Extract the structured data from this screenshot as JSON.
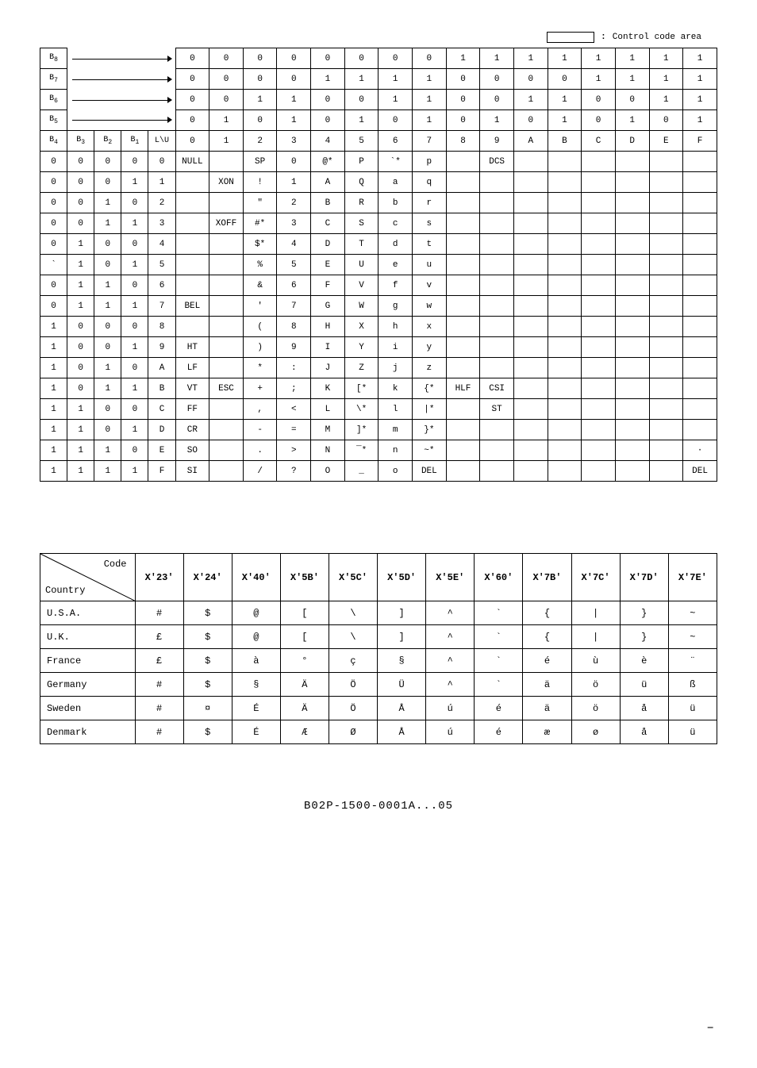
{
  "legend": {
    "label": "Control code area"
  },
  "bitHeaders": {
    "rowLabels": [
      "B₈",
      "B₇",
      "B₆",
      "B₅"
    ],
    "col5Label": "B₄",
    "subLabels": [
      "B₃",
      "B₂",
      "B₁",
      "L\\U"
    ]
  },
  "topRows": [
    [
      "0",
      "0",
      "0",
      "0",
      "0",
      "0",
      "0",
      "0",
      "1",
      "1",
      "1",
      "1",
      "1",
      "1",
      "1",
      "1"
    ],
    [
      "0",
      "0",
      "0",
      "0",
      "1",
      "1",
      "1",
      "1",
      "0",
      "0",
      "0",
      "0",
      "1",
      "1",
      "1",
      "1"
    ],
    [
      "0",
      "0",
      "1",
      "1",
      "0",
      "0",
      "1",
      "1",
      "0",
      "0",
      "1",
      "1",
      "0",
      "0",
      "1",
      "1"
    ],
    [
      "0",
      "1",
      "0",
      "1",
      "0",
      "1",
      "0",
      "1",
      "0",
      "1",
      "0",
      "1",
      "0",
      "1",
      "0",
      "1"
    ]
  ],
  "hexRow": [
    "0",
    "1",
    "2",
    "3",
    "4",
    "5",
    "6",
    "7",
    "8",
    "9",
    "A",
    "B",
    "C",
    "D",
    "E",
    "F"
  ],
  "dataRows": [
    {
      "bits": [
        "0",
        "0",
        "0",
        "0",
        "0"
      ],
      "cells": [
        "NULL",
        "",
        "SP",
        "0",
        "@*",
        "P",
        "`*",
        "p",
        "",
        "DCS",
        "",
        "",
        "",
        "",
        "",
        ""
      ]
    },
    {
      "bits": [
        "0",
        "0",
        "0",
        "1",
        "1"
      ],
      "cells": [
        "",
        "XON",
        "!",
        "1",
        "A",
        "Q",
        "a",
        "q",
        "",
        "",
        "",
        "",
        "",
        "",
        "",
        ""
      ]
    },
    {
      "bits": [
        "0",
        "0",
        "1",
        "0",
        "2"
      ],
      "cells": [
        "",
        "",
        "\"",
        "2",
        "B",
        "R",
        "b",
        "r",
        "",
        "",
        "",
        "",
        "",
        "",
        "",
        ""
      ]
    },
    {
      "bits": [
        "0",
        "0",
        "1",
        "1",
        "3"
      ],
      "cells": [
        "",
        "XOFF",
        "#*",
        "3",
        "C",
        "S",
        "c",
        "s",
        "",
        "",
        "",
        "",
        "",
        "",
        "",
        ""
      ]
    },
    {
      "bits": [
        "0",
        "1",
        "0",
        "0",
        "4"
      ],
      "cells": [
        "",
        "",
        "$*",
        "4",
        "D",
        "T",
        "d",
        "t",
        "",
        "",
        "",
        "",
        "",
        "",
        "",
        ""
      ]
    },
    {
      "bits": [
        "`",
        "1",
        "0",
        "1",
        "5"
      ],
      "cells": [
        "",
        "",
        "%",
        "5",
        "E",
        "U",
        "e",
        "u",
        "",
        "",
        "",
        "",
        "",
        "",
        "",
        ""
      ]
    },
    {
      "bits": [
        "0",
        "1",
        "1",
        "0",
        "6"
      ],
      "cells": [
        "",
        "",
        "&",
        "6",
        "F",
        "V",
        "f",
        "v",
        "",
        "",
        "",
        "",
        "",
        "",
        "",
        ""
      ]
    },
    {
      "bits": [
        "0",
        "1",
        "1",
        "1",
        "7"
      ],
      "cells": [
        "BEL",
        "",
        "'",
        "7",
        "G",
        "W",
        "g",
        "w",
        "",
        "",
        "",
        "",
        "",
        "",
        "",
        ""
      ]
    },
    {
      "bits": [
        "1",
        "0",
        "0",
        "0",
        "8"
      ],
      "cells": [
        "",
        "",
        "(",
        "8",
        "H",
        "X",
        "h",
        "x",
        "",
        "",
        "",
        "",
        "",
        "",
        "",
        ""
      ]
    },
    {
      "bits": [
        "1",
        "0",
        "0",
        "1",
        "9"
      ],
      "cells": [
        "HT",
        "",
        ")",
        "9",
        "I",
        "Y",
        "i",
        "y",
        "",
        "",
        "",
        "",
        "",
        "",
        "",
        ""
      ]
    },
    {
      "bits": [
        "1",
        "0",
        "1",
        "0",
        "A"
      ],
      "cells": [
        "LF",
        "",
        "*",
        ":",
        "J",
        "Z",
        "j",
        "z",
        "",
        "",
        "",
        "",
        "",
        "",
        "",
        ""
      ]
    },
    {
      "bits": [
        "1",
        "0",
        "1",
        "1",
        "B"
      ],
      "cells": [
        "VT",
        "ESC",
        "+",
        ";",
        "K",
        "[*",
        "k",
        "{*",
        "HLF",
        "CSI",
        "",
        "",
        "",
        "",
        "",
        ""
      ]
    },
    {
      "bits": [
        "1",
        "1",
        "0",
        "0",
        "C"
      ],
      "cells": [
        "FF",
        "",
        ",",
        "<",
        "L",
        "\\*",
        "l",
        "|*",
        "",
        "ST",
        "",
        "",
        "",
        "",
        "",
        ""
      ]
    },
    {
      "bits": [
        "1",
        "1",
        "0",
        "1",
        "D"
      ],
      "cells": [
        "CR",
        "",
        "-",
        "=",
        "M",
        "]*",
        "m",
        "}*",
        "",
        "",
        "",
        "",
        "",
        "",
        "",
        ""
      ]
    },
    {
      "bits": [
        "1",
        "1",
        "1",
        "0",
        "E"
      ],
      "cells": [
        "SO",
        "",
        ".",
        ">",
        "N",
        "‾*",
        "n",
        "~*",
        "",
        "",
        "",
        "",
        "",
        "",
        "",
        "·"
      ]
    },
    {
      "bits": [
        "1",
        "1",
        "1",
        "1",
        "F"
      ],
      "cells": [
        "SI",
        "",
        "/",
        "?",
        "O",
        "_",
        "o",
        "DEL",
        "",
        "",
        "",
        "",
        "",
        "",
        "",
        "DEL"
      ]
    }
  ],
  "countryTable": {
    "diag": {
      "top": "Code",
      "bottom": "Country"
    },
    "headers": [
      "X'23'",
      "X'24'",
      "X'40'",
      "X'5B'",
      "X'5C'",
      "X'5D'",
      "X'5E'",
      "X'60'",
      "X'7B'",
      "X'7C'",
      "X'7D'",
      "X'7E'"
    ],
    "rows": [
      {
        "name": "U.S.A.",
        "cells": [
          "#",
          "$",
          "@",
          "[",
          "\\",
          "]",
          "^",
          "`",
          "{",
          "|",
          "}",
          "~"
        ]
      },
      {
        "name": "U.K.",
        "cells": [
          "£",
          "$",
          "@",
          "[",
          "\\",
          "]",
          "^",
          "`",
          "{",
          "|",
          "}",
          "~"
        ]
      },
      {
        "name": "France",
        "cells": [
          "£",
          "$",
          "à",
          "°",
          "ç",
          "§",
          "^",
          "`",
          "é",
          "ù",
          "è",
          "¨"
        ]
      },
      {
        "name": "Germany",
        "cells": [
          "#",
          "$",
          "§",
          "Ä",
          "Ö",
          "Ü",
          "^",
          "`",
          "ä",
          "ö",
          "ü",
          "ß"
        ]
      },
      {
        "name": "Sweden",
        "cells": [
          "#",
          "¤",
          "É",
          "Ä",
          "Ö",
          "Å",
          "ú",
          "é",
          "ä",
          "ö",
          "å",
          "ü"
        ]
      },
      {
        "name": "Denmark",
        "cells": [
          "#",
          "$",
          "É",
          "Æ",
          "Ø",
          "Å",
          "ú",
          "é",
          "æ",
          "ø",
          "å",
          "ü"
        ]
      }
    ]
  },
  "footer": "B02P-1500-0001A...05",
  "pageCorner": "–"
}
